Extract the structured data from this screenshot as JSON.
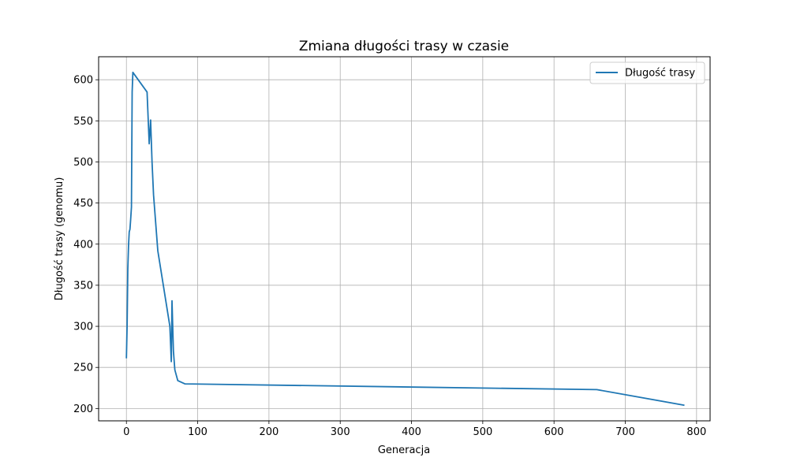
{
  "chart_data": {
    "type": "line",
    "title": "Zmiana długości trasy w czasie",
    "xlabel": "Generacja",
    "ylabel": "Długość trasy (genomu)",
    "xlim": [
      -39,
      819
    ],
    "ylim": [
      185,
      628
    ],
    "xticks": [
      0,
      100,
      200,
      300,
      400,
      500,
      600,
      700,
      800
    ],
    "yticks": [
      200,
      250,
      300,
      350,
      400,
      450,
      500,
      550,
      600
    ],
    "grid": true,
    "legend_position": "top-right",
    "series": [
      {
        "name": "Długość trasy",
        "color": "#1f77b4",
        "x": [
          0,
          1,
          2,
          3,
          4,
          5,
          6,
          7,
          8,
          9,
          29,
          32,
          34,
          35,
          36,
          38,
          44,
          61,
          63,
          64,
          65,
          66,
          68,
          72,
          82,
          660,
          783
        ],
        "y": [
          261,
          300,
          370,
          398,
          415,
          418,
          430,
          445,
          585,
          609,
          585,
          522,
          551,
          525,
          500,
          460,
          392,
          300,
          257,
          331,
          300,
          270,
          247,
          234,
          230,
          223,
          204
        ]
      }
    ]
  }
}
